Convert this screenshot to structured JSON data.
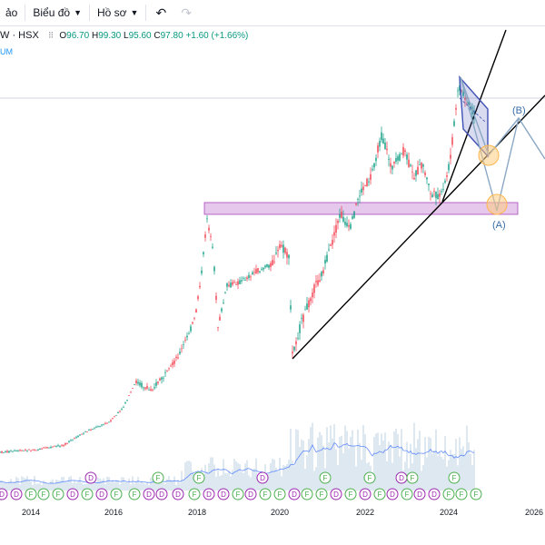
{
  "toolbar": {
    "item1": "ảo",
    "item2": "Biểu đồ",
    "item3": "Hồ sơ"
  },
  "legend": {
    "symbol": "W · HSX",
    "open_label": "O",
    "open": "96.70",
    "high_label": "H",
    "high": "99.30",
    "low_label": "L",
    "low": "95.60",
    "close_label": "C",
    "close": "97.80",
    "change": "+1.60 (+1.66%)",
    "secondary": "UM"
  },
  "annotations": {
    "wave_a": "(A)",
    "wave_b": "(B)"
  },
  "x_axis": [
    "2014",
    "2016",
    "2018",
    "2020",
    "2022",
    "2024",
    "2026"
  ],
  "event_markers": {
    "dividend": "D",
    "financials": "F"
  },
  "colors": {
    "up": "#089981",
    "down": "#f23645",
    "support_zone": "#e1bee7",
    "volume": "#b2c7de",
    "volume_ma": "#2962ff",
    "flag": "#3f51b5"
  },
  "chart_data": {
    "type": "candlestick",
    "x_axis_labels": [
      "2014",
      "2016",
      "2018",
      "2020",
      "2022",
      "2024",
      "2026"
    ],
    "price_points": [
      {
        "x": "2013",
        "y": 10
      },
      {
        "x": "2015",
        "y": 13
      },
      {
        "x": "2016",
        "y": 22
      },
      {
        "x": "2017",
        "y": 34
      },
      {
        "x": "2018",
        "y": 68
      },
      {
        "x": "2018.3",
        "y": 55
      },
      {
        "x": "2019",
        "y": 62
      },
      {
        "x": "2020",
        "y": 62
      },
      {
        "x": "2020.3",
        "y": 40
      },
      {
        "x": "2021",
        "y": 60
      },
      {
        "x": "2022",
        "y": 80
      },
      {
        "x": "2023",
        "y": 78
      },
      {
        "x": "2023.8",
        "y": 78
      },
      {
        "x": "2024.2",
        "y": 99
      },
      {
        "x": "2024.6",
        "y": 92
      }
    ],
    "last_close": 97.8
  }
}
